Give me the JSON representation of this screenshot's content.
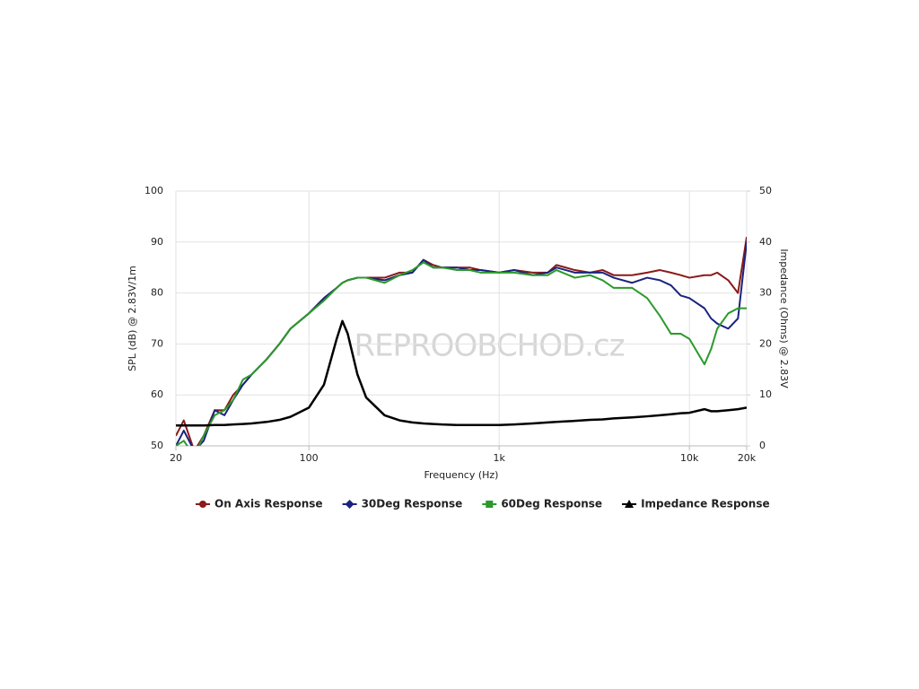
{
  "chart_data": {
    "type": "line",
    "watermark": "REPROOBCHOD.cz",
    "x_label": "Frequency (Hz)",
    "y_label": "SPL (dB) @ 2.83V/1m",
    "y2_label": "Impedance (Ohms) @ 2.83V",
    "xscale": "log",
    "xlim": [
      20,
      20000
    ],
    "xticks": [
      20,
      100,
      {
        "value": 1000,
        "label": "1k"
      },
      {
        "value": 10000,
        "label": "10k"
      },
      {
        "value": 20000,
        "label": "20k"
      }
    ],
    "ylim": [
      50,
      100
    ],
    "yticks": [
      50,
      60,
      70,
      80,
      90,
      100
    ],
    "y2lim": [
      0,
      50
    ],
    "y2ticks": [
      0,
      10,
      20,
      30,
      40,
      50
    ],
    "grid": true,
    "legend": "bottom",
    "x": [
      20,
      22,
      25,
      28,
      32,
      36,
      40,
      45,
      50,
      60,
      70,
      80,
      100,
      120,
      140,
      150,
      160,
      180,
      200,
      250,
      300,
      350,
      400,
      450,
      500,
      600,
      700,
      800,
      1000,
      1200,
      1500,
      1800,
      2000,
      2500,
      3000,
      3500,
      4000,
      5000,
      6000,
      7000,
      8000,
      9000,
      10000,
      12000,
      13000,
      14000,
      16000,
      18000,
      20000
    ],
    "series": [
      {
        "name": "On Axis Response",
        "color": "#8b1a1a",
        "marker": "circle",
        "values": [
          52,
          55,
          49,
          52,
          57,
          57,
          60,
          62,
          64,
          67,
          70,
          73,
          76,
          79,
          81,
          82,
          82.5,
          83,
          83,
          83,
          84,
          84,
          86.5,
          85.5,
          85,
          85,
          85,
          84.5,
          84,
          84.5,
          84,
          84,
          85.5,
          84.5,
          84,
          84.5,
          83.5,
          83.5,
          84,
          84.5,
          84,
          83.5,
          83,
          83.5,
          83.5,
          84,
          82.5,
          80,
          91
        ]
      },
      {
        "name": "30Deg Response",
        "color": "#1a237e",
        "marker": "diamond",
        "values": [
          50,
          53,
          49,
          51,
          57,
          56,
          59,
          62,
          64,
          67,
          70,
          73,
          76,
          79,
          81,
          82,
          82.5,
          83,
          83,
          82.5,
          83.5,
          84,
          86.5,
          85,
          85,
          85,
          84.5,
          84.5,
          84,
          84.5,
          83.5,
          84,
          85,
          84,
          84,
          84,
          83,
          82,
          83,
          82.5,
          81.5,
          79.5,
          79,
          77,
          75,
          74,
          73,
          75,
          90
        ]
      },
      {
        "name": "60Deg Response",
        "color": "#2a9a2a",
        "marker": "square",
        "values": [
          50,
          51,
          48,
          52,
          56,
          57,
          59,
          63,
          64,
          67,
          70,
          73,
          76,
          78.5,
          81,
          82,
          82.5,
          83,
          83,
          82,
          83.5,
          84.5,
          86,
          85,
          85,
          84.5,
          84.5,
          84,
          84,
          84,
          83.5,
          83.5,
          84.5,
          83,
          83.5,
          82.5,
          81,
          81,
          79,
          75.5,
          72,
          72,
          71,
          66,
          69,
          73,
          76,
          77,
          77
        ]
      },
      {
        "name": "Impedance Response",
        "color": "#000000",
        "marker": "triangle",
        "axis": "y2",
        "values": [
          4.0,
          4.0,
          4.0,
          4.0,
          4.1,
          4.1,
          4.2,
          4.3,
          4.4,
          4.7,
          5.1,
          5.7,
          7.5,
          12,
          21,
          24.5,
          22,
          14,
          9.5,
          6,
          5,
          4.6,
          4.4,
          4.3,
          4.2,
          4.1,
          4.1,
          4.1,
          4.1,
          4.2,
          4.4,
          4.6,
          4.7,
          4.9,
          5.1,
          5.2,
          5.4,
          5.6,
          5.8,
          6.0,
          6.2,
          6.4,
          6.5,
          7.2,
          6.8,
          6.8,
          7.0,
          7.2,
          7.5
        ]
      }
    ]
  }
}
